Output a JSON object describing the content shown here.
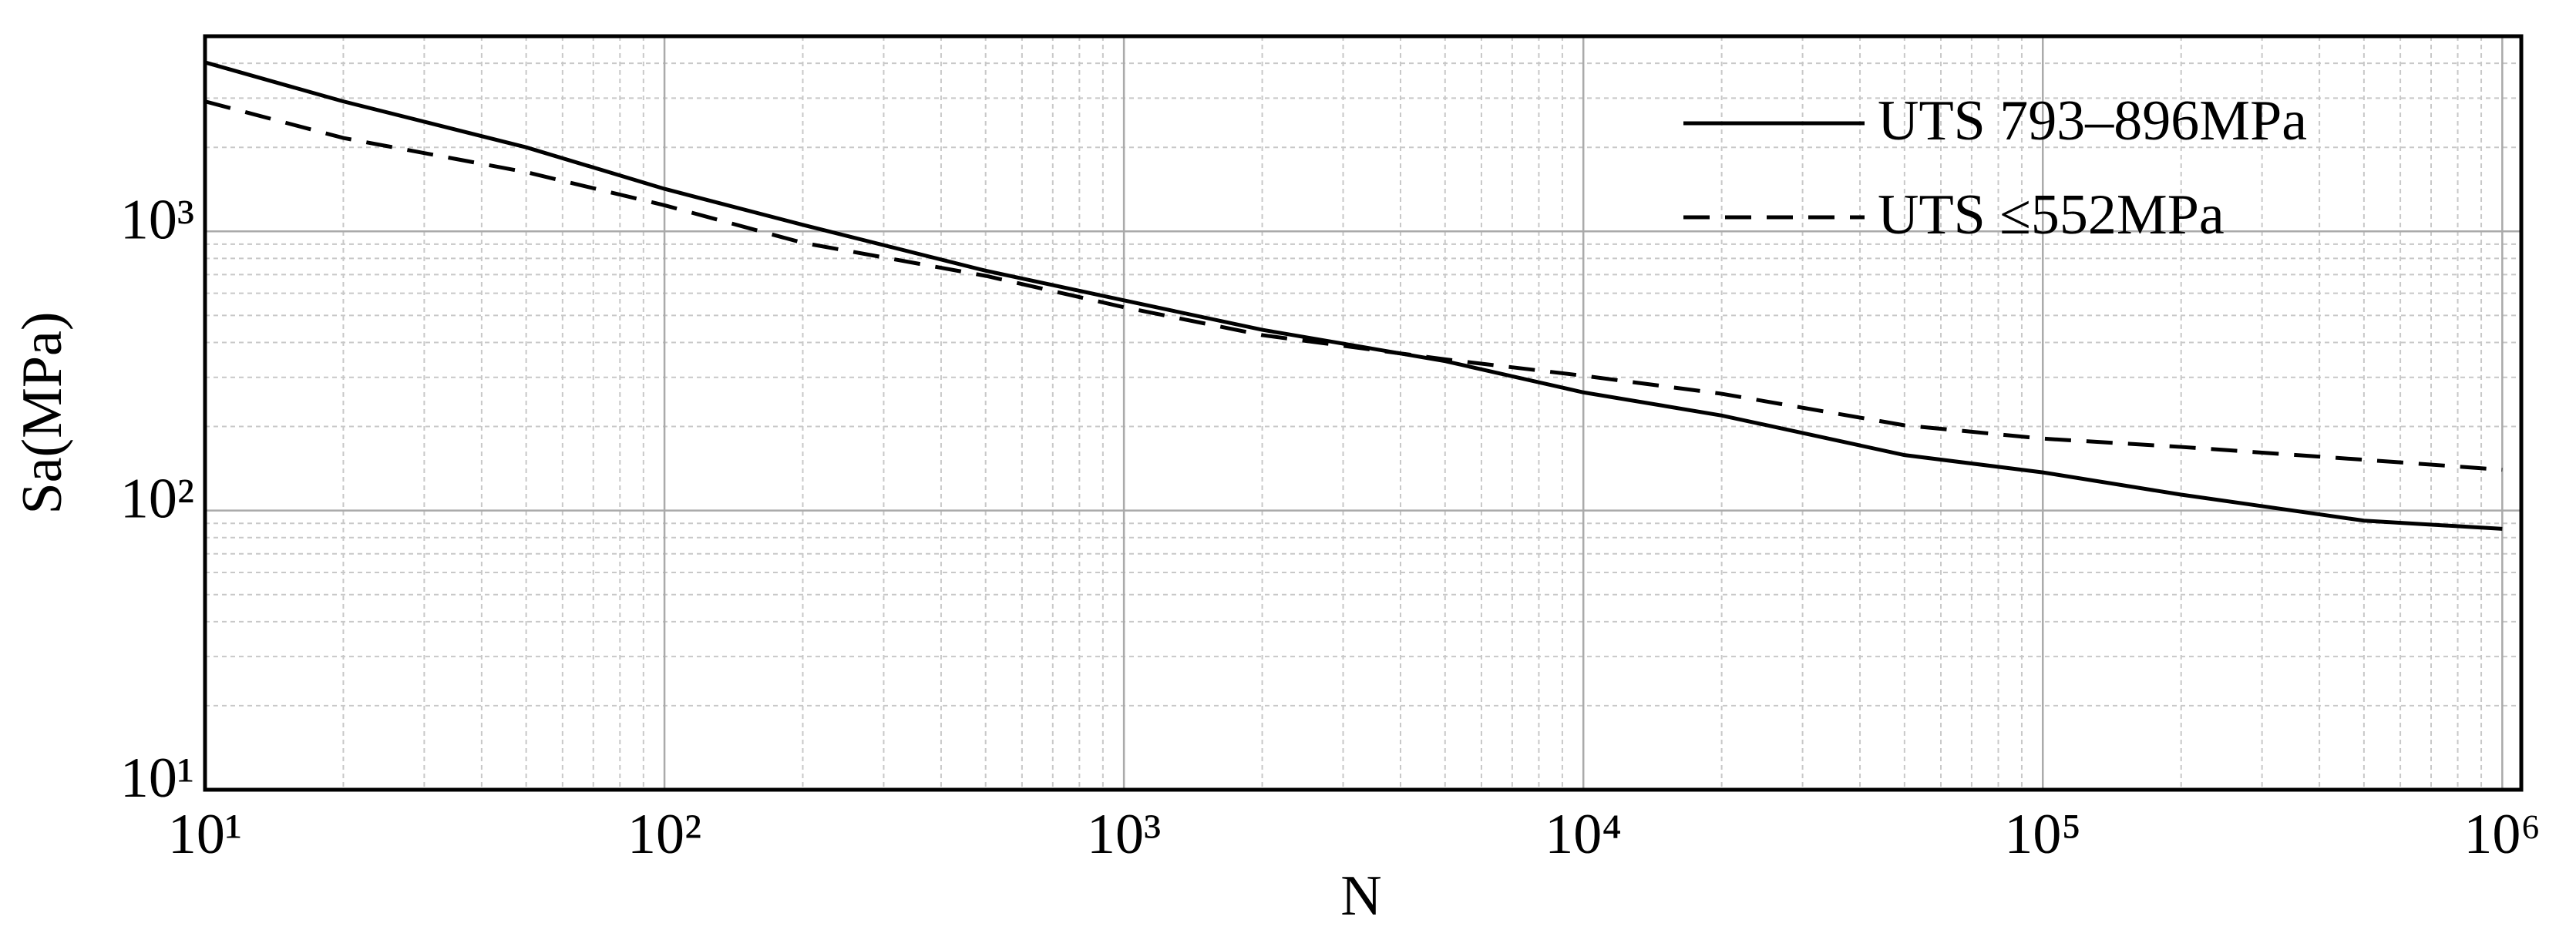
{
  "chart_data": {
    "type": "line",
    "x_label": "N",
    "y_label": "Sa(MPa)",
    "x": [
      10,
      20,
      50,
      100,
      200,
      500,
      1000,
      2000,
      5000,
      10000,
      20000,
      50000,
      100000,
      200000,
      500000,
      1000000
    ],
    "series": [
      {
        "name": "UTS 793–896MPa",
        "color": "#000000",
        "line_style": "solid",
        "values": [
          4030,
          2920,
          2000,
          1420,
          1055,
          723,
          566,
          444,
          343,
          265,
          219,
          158,
          137,
          114,
          92,
          86
        ]
      },
      {
        "name": "UTS ≤552MPa",
        "color": "#000000",
        "line_style": "dashed",
        "values": [
          2920,
          2160,
          1630,
          1240,
          910,
          693,
          535,
          425,
          348,
          304,
          262,
          202,
          181,
          169,
          152,
          140
        ]
      }
    ],
    "xlim": [
      10,
      1100000
    ],
    "ylim": [
      10,
      5000
    ],
    "xticks": [
      {
        "value": 10,
        "label": "10¹"
      },
      {
        "value": 100,
        "label": "10²"
      },
      {
        "value": 1000,
        "label": "10³"
      },
      {
        "value": 10000,
        "label": "10⁴"
      },
      {
        "value": 100000,
        "label": "10⁵"
      },
      {
        "value": 1000000,
        "label": "10⁶"
      }
    ],
    "yticks": [
      {
        "value": 10,
        "label": "10¹"
      },
      {
        "value": 100,
        "label": "10²"
      },
      {
        "value": 1000,
        "label": "10³"
      }
    ],
    "x_log": true,
    "y_log": true,
    "grid": true,
    "minor_grid": true,
    "legend": "upper right"
  }
}
